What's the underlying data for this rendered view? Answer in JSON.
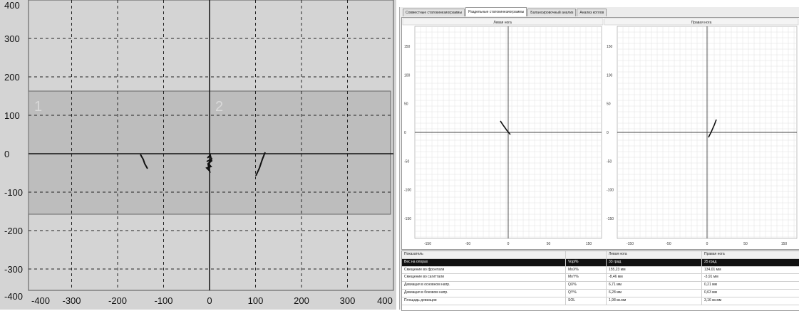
{
  "left_plot": {
    "x_ticks": [
      "-400",
      "-300",
      "-200",
      "-100",
      "0",
      "100",
      "200",
      "300",
      "400"
    ],
    "y_ticks": [
      "400",
      "300",
      "200",
      "100",
      "0",
      "-100",
      "-200",
      "-300",
      "-400"
    ],
    "x_range": [
      -400,
      400
    ],
    "y_range": [
      -400,
      400
    ],
    "zone_range_y": [
      -170,
      170
    ],
    "zone_labels": [
      "1",
      "2"
    ],
    "colors": {
      "background": "#d4d4d4",
      "zone": "#bdbdbd",
      "axis": "#111111",
      "grid": "#222222"
    }
  },
  "tabs": [
    {
      "label": "Совместные статокинезиограммы"
    },
    {
      "label": "Раздельные статокинезиограммы",
      "active": true
    },
    {
      "label": "Балансировочный анализ"
    },
    {
      "label": "Анализ котлов"
    }
  ],
  "graphs": {
    "left_title": "Левая нога",
    "right_title": "Правая нога",
    "y_ticks": [
      "150",
      "100",
      "50",
      "0",
      "-50",
      "-100",
      "-150"
    ],
    "x_ticks": [
      "-150",
      "-50",
      "0",
      "50",
      "150"
    ]
  },
  "table": {
    "headers": [
      "Показатель",
      "",
      "Левая нога",
      "Правая нога"
    ],
    "rows": [
      [
        "Вес на опорах",
        "Vopt%",
        "33 град",
        "25 град"
      ],
      [
        "Смещение во фронтали",
        "MoX%",
        "155,23 мм",
        "134,01 мм"
      ],
      [
        "Смещение во сагиттали",
        "MoY%",
        "-8,46 мм",
        "-3,91 мм"
      ],
      [
        "Девиация в основном напр.",
        "QX%",
        "6,71 мм",
        "0,21 мм"
      ],
      [
        "Девиация в боковом напр.",
        "QY%",
        "6,28 мм",
        "0,63 мм"
      ],
      [
        "Площадь девиации",
        "SOL",
        "1,98 кв.мм",
        "3,16 кв.мм"
      ]
    ],
    "selected_row": 0
  }
}
